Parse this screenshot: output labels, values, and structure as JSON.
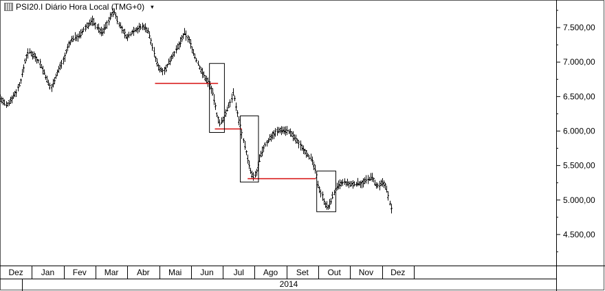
{
  "header": {
    "symbol_label": "PSI20.I Diário Hora Local (TMG+0)",
    "menu_caret": "▾"
  },
  "colors": {
    "price": "#000000",
    "support_line": "#d81e1e",
    "box": "#000000",
    "axis": "#000000"
  },
  "chart_data": {
    "type": "ohlc",
    "title": "PSI20.I Diário Hora Local (TMG+0)",
    "xlabel": "2014",
    "x_tick_labels": [
      "Dez",
      "Jan",
      "Fev",
      "Mar",
      "Abr",
      "Mai",
      "Jun",
      "Jul",
      "Ago",
      "Set",
      "Out",
      "Nov",
      "Dez"
    ],
    "y_tick_labels": [
      "7.500,00",
      "7.000,00",
      "6.500,00",
      "6.000,00",
      "5.500,00",
      "5.000,00",
      "4.500,00"
    ],
    "y_tick_values": [
      7500,
      7000,
      6500,
      6000,
      5500,
      5000,
      4500
    ],
    "ylim": [
      4050,
      7900
    ],
    "x_range_months": [
      0,
      13.6
    ],
    "grid": false,
    "series": [
      {
        "points": [
          [
            0.0,
            6480
          ],
          [
            0.2,
            6360
          ],
          [
            0.35,
            6470
          ],
          [
            0.5,
            6560
          ],
          [
            0.65,
            6740
          ],
          [
            0.8,
            7050
          ],
          [
            0.9,
            7150
          ],
          [
            1.0,
            7120
          ],
          [
            1.1,
            7080
          ],
          [
            1.25,
            6980
          ],
          [
            1.4,
            6820
          ],
          [
            1.5,
            6700
          ],
          [
            1.6,
            6620
          ],
          [
            1.7,
            6750
          ],
          [
            1.85,
            6900
          ],
          [
            2.0,
            7050
          ],
          [
            2.15,
            7250
          ],
          [
            2.3,
            7350
          ],
          [
            2.5,
            7380
          ],
          [
            2.7,
            7520
          ],
          [
            2.9,
            7600
          ],
          [
            3.05,
            7500
          ],
          [
            3.2,
            7420
          ],
          [
            3.35,
            7550
          ],
          [
            3.5,
            7700
          ],
          [
            3.6,
            7730
          ],
          [
            3.7,
            7580
          ],
          [
            3.85,
            7450
          ],
          [
            4.0,
            7350
          ],
          [
            4.15,
            7450
          ],
          [
            4.3,
            7480
          ],
          [
            4.5,
            7520
          ],
          [
            4.65,
            7450
          ],
          [
            4.8,
            7200
          ],
          [
            4.9,
            7000
          ],
          [
            5.05,
            6880
          ],
          [
            5.2,
            6900
          ],
          [
            5.35,
            7050
          ],
          [
            5.5,
            7150
          ],
          [
            5.65,
            7280
          ],
          [
            5.8,
            7420
          ],
          [
            5.95,
            7300
          ],
          [
            6.1,
            7100
          ],
          [
            6.25,
            6930
          ],
          [
            6.4,
            6800
          ],
          [
            6.55,
            6700
          ],
          [
            6.65,
            6580
          ],
          [
            6.72,
            6450
          ],
          [
            6.8,
            6250
          ],
          [
            6.9,
            6120
          ],
          [
            7.0,
            6150
          ],
          [
            7.1,
            6280
          ],
          [
            7.22,
            6420
          ],
          [
            7.32,
            6550
          ],
          [
            7.4,
            6380
          ],
          [
            7.48,
            6180
          ],
          [
            7.55,
            6050
          ],
          [
            7.62,
            5900
          ],
          [
            7.7,
            5750
          ],
          [
            7.78,
            5580
          ],
          [
            7.86,
            5420
          ],
          [
            7.95,
            5320
          ],
          [
            8.05,
            5400
          ],
          [
            8.15,
            5600
          ],
          [
            8.3,
            5780
          ],
          [
            8.5,
            5920
          ],
          [
            8.7,
            6000
          ],
          [
            8.85,
            6020
          ],
          [
            9.05,
            6000
          ],
          [
            9.25,
            5900
          ],
          [
            9.45,
            5780
          ],
          [
            9.6,
            5700
          ],
          [
            9.75,
            5600
          ],
          [
            9.85,
            5500
          ],
          [
            9.92,
            5380
          ],
          [
            10.0,
            5200
          ],
          [
            10.1,
            5080
          ],
          [
            10.2,
            4950
          ],
          [
            10.3,
            4880
          ],
          [
            10.4,
            5000
          ],
          [
            10.5,
            5120
          ],
          [
            10.65,
            5220
          ],
          [
            10.8,
            5250
          ],
          [
            11.0,
            5220
          ],
          [
            11.2,
            5240
          ],
          [
            11.4,
            5250
          ],
          [
            11.55,
            5300
          ],
          [
            11.7,
            5330
          ],
          [
            11.8,
            5200
          ],
          [
            11.92,
            5200
          ],
          [
            12.0,
            5250
          ],
          [
            12.1,
            5220
          ],
          [
            12.18,
            5080
          ],
          [
            12.24,
            4950
          ],
          [
            12.3,
            4830
          ]
        ]
      }
    ],
    "support_lines": [
      {
        "x_from": 4.87,
        "x_to": 6.85,
        "y": 6690
      },
      {
        "x_from": 6.75,
        "x_to": 7.6,
        "y": 6030
      },
      {
        "x_from": 7.78,
        "x_to": 9.92,
        "y": 5310
      }
    ],
    "highlight_boxes": [
      {
        "x_from": 6.58,
        "x_to": 7.05,
        "y_low": 5980,
        "y_high": 6980
      },
      {
        "x_from": 7.55,
        "x_to": 8.12,
        "y_low": 5260,
        "y_high": 6220
      },
      {
        "x_from": 9.95,
        "x_to": 10.55,
        "y_low": 4830,
        "y_high": 5420
      }
    ]
  }
}
